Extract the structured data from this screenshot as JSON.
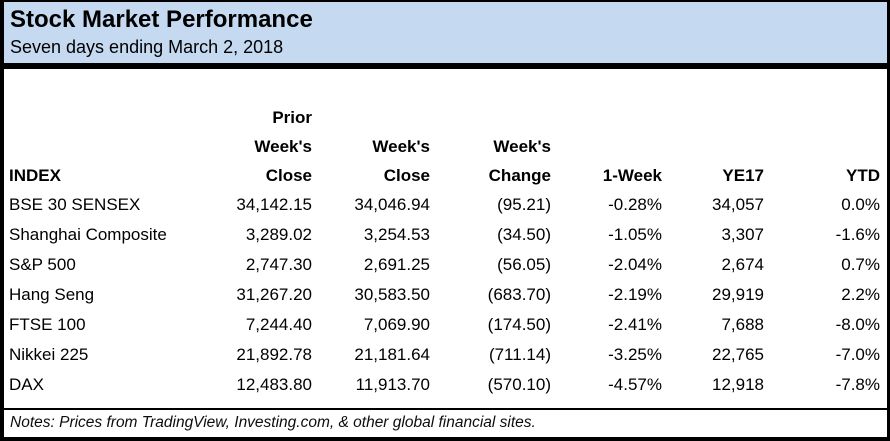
{
  "header": {
    "title": "Stock Market Performance",
    "subtitle": "Seven days ending March 2, 2018"
  },
  "table": {
    "columns": [
      {
        "name": "index",
        "lines": [
          "INDEX"
        ]
      },
      {
        "name": "prior-weeks-close",
        "lines": [
          "Prior",
          "Week's",
          "Close"
        ]
      },
      {
        "name": "weeks-close",
        "lines": [
          "Week's",
          "Close"
        ]
      },
      {
        "name": "weeks-change",
        "lines": [
          "Week's",
          "Change"
        ]
      },
      {
        "name": "one-week",
        "lines": [
          "1-Week"
        ]
      },
      {
        "name": "ye17",
        "lines": [
          "YE17"
        ]
      },
      {
        "name": "ytd",
        "lines": [
          "YTD"
        ]
      }
    ],
    "rows": [
      [
        "BSE 30 SENSEX",
        "34,142.15",
        "34,046.94",
        "(95.21)",
        "-0.28%",
        "34,057",
        "0.0%"
      ],
      [
        "Shanghai Composite",
        "3,289.02",
        "3,254.53",
        "(34.50)",
        "-1.05%",
        "3,307",
        "-1.6%"
      ],
      [
        "S&P 500",
        "2,747.30",
        "2,691.25",
        "(56.05)",
        "-2.04%",
        "2,674",
        "0.7%"
      ],
      [
        "Hang Seng",
        "31,267.20",
        "30,583.50",
        "(683.70)",
        "-2.19%",
        "29,919",
        "2.2%"
      ],
      [
        "FTSE 100",
        "7,244.40",
        "7,069.90",
        "(174.50)",
        "-2.41%",
        "7,688",
        "-8.0%"
      ],
      [
        "Nikkei 225",
        "21,892.78",
        "21,181.64",
        "(711.14)",
        "-3.25%",
        "22,765",
        "-7.0%"
      ],
      [
        "DAX",
        "12,483.80",
        "11,913.70",
        "(570.10)",
        "-4.57%",
        "12,918",
        "-7.8%"
      ]
    ]
  },
  "notes": "Notes: Prices from TradingView, Investing.com, & other global financial sites.",
  "colors": {
    "header_bg": "#c5d9f1",
    "border": "#000000",
    "body_bg": "#ffffff",
    "text": "#000000"
  },
  "chart_data": {
    "type": "table",
    "title": "Stock Market Performance",
    "subtitle": "Seven days ending March 2, 2018",
    "columns": [
      "INDEX",
      "Prior Week's Close",
      "Week's Close",
      "Week's Change",
      "1-Week",
      "YE17",
      "YTD"
    ],
    "rows": [
      {
        "index": "BSE 30 SENSEX",
        "prior_weeks_close": 34142.15,
        "weeks_close": 34046.94,
        "weeks_change": -95.21,
        "one_week_pct": -0.28,
        "ye17": 34057,
        "ytd_pct": 0.0
      },
      {
        "index": "Shanghai Composite",
        "prior_weeks_close": 3289.02,
        "weeks_close": 3254.53,
        "weeks_change": -34.5,
        "one_week_pct": -1.05,
        "ye17": 3307,
        "ytd_pct": -1.6
      },
      {
        "index": "S&P 500",
        "prior_weeks_close": 2747.3,
        "weeks_close": 2691.25,
        "weeks_change": -56.05,
        "one_week_pct": -2.04,
        "ye17": 2674,
        "ytd_pct": 0.7
      },
      {
        "index": "Hang Seng",
        "prior_weeks_close": 31267.2,
        "weeks_close": 30583.5,
        "weeks_change": -683.7,
        "one_week_pct": -2.19,
        "ye17": 29919,
        "ytd_pct": 2.2
      },
      {
        "index": "FTSE 100",
        "prior_weeks_close": 7244.4,
        "weeks_close": 7069.9,
        "weeks_change": -174.5,
        "one_week_pct": -2.41,
        "ye17": 7688,
        "ytd_pct": -8.0
      },
      {
        "index": "Nikkei 225",
        "prior_weeks_close": 21892.78,
        "weeks_close": 21181.64,
        "weeks_change": -711.14,
        "one_week_pct": -3.25,
        "ye17": 22765,
        "ytd_pct": -7.0
      },
      {
        "index": "DAX",
        "prior_weeks_close": 12483.8,
        "weeks_close": 11913.7,
        "weeks_change": -570.1,
        "one_week_pct": -4.57,
        "ye17": 12918,
        "ytd_pct": -7.8
      }
    ],
    "notes": "Notes: Prices from TradingView, Investing.com, & other global financial sites."
  }
}
